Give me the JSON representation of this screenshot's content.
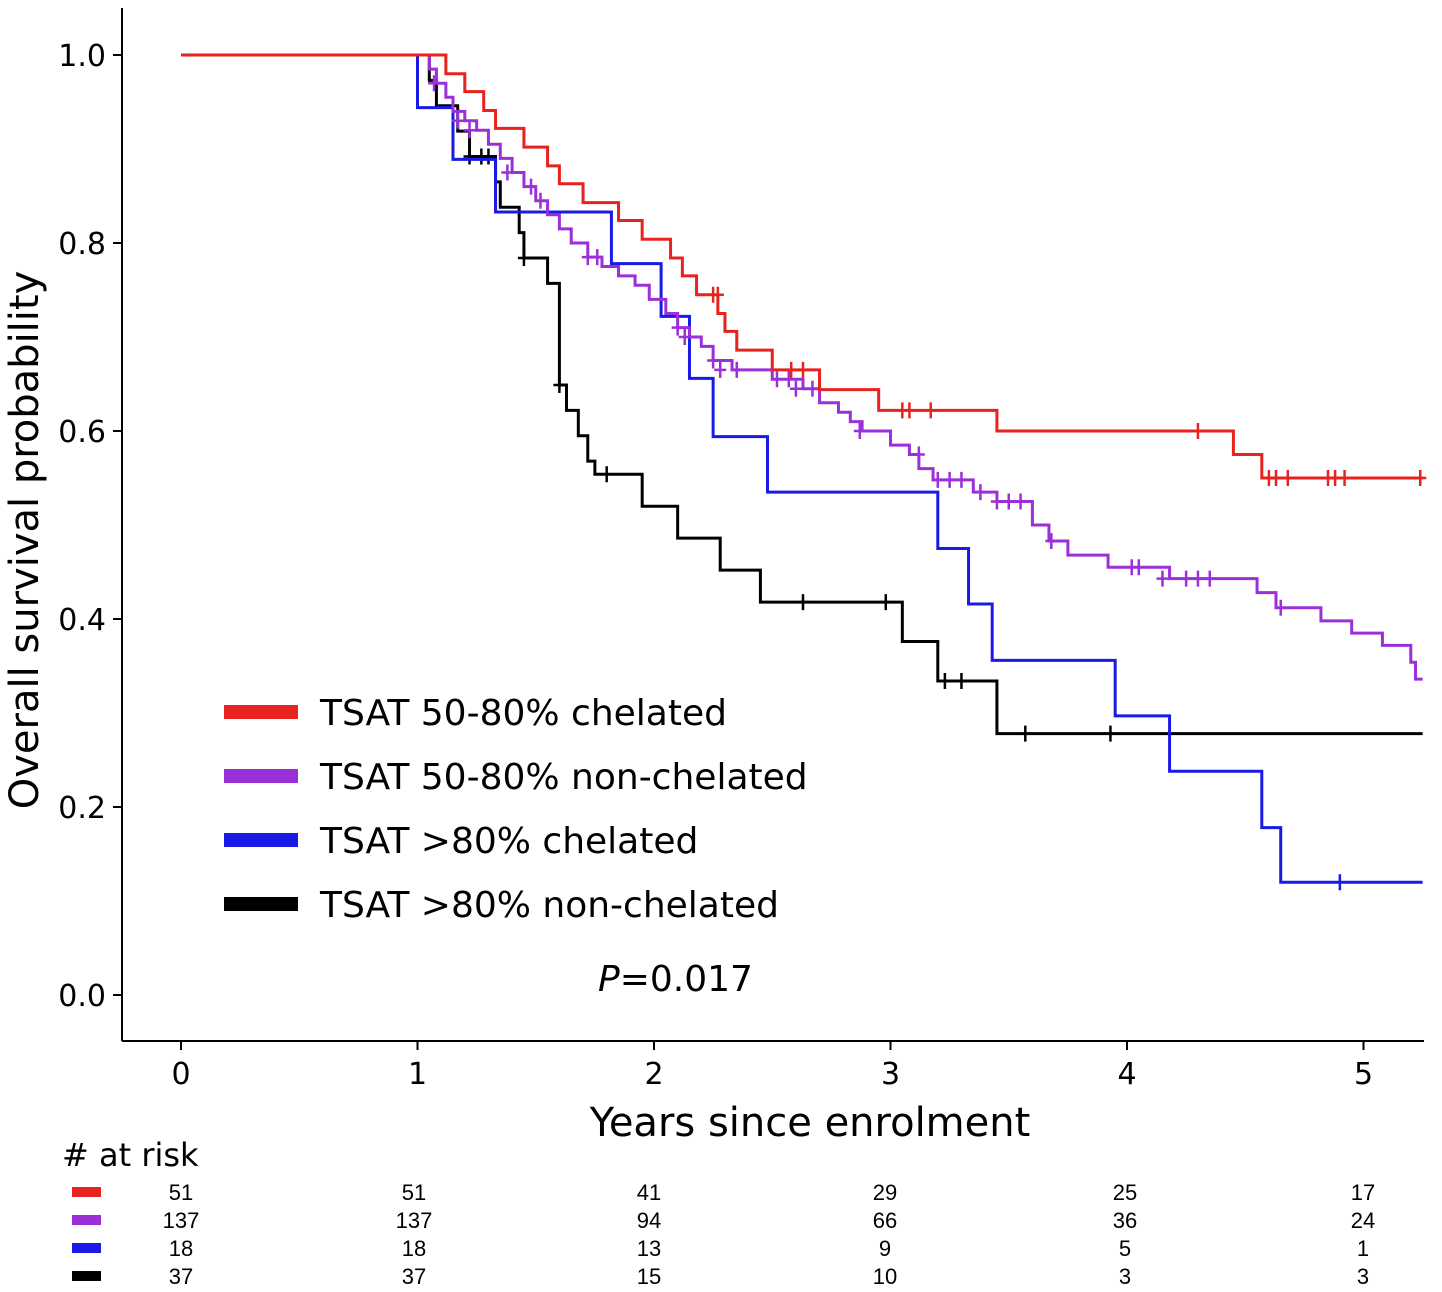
{
  "chart_data": {
    "type": "line",
    "subtype": "kaplan-meier-step",
    "xlabel": "Years since enrolment",
    "ylabel": "Overall survival probability",
    "xlim": [
      -0.25,
      5.25
    ],
    "ylim": [
      -0.05,
      1.05
    ],
    "x_ticks": [
      "0",
      "1",
      "2",
      "3",
      "4",
      "5"
    ],
    "y_ticks": [
      "0.0",
      "0.2",
      "0.4",
      "0.6",
      "0.8",
      "1.0"
    ],
    "grid": false,
    "legend_position": "bottom-left",
    "annotation": {
      "italic": "P",
      "rest": "=0.017"
    },
    "series": [
      {
        "name": "TSAT 50-80% chelated",
        "color": "#e8231f",
        "steps": [
          [
            0,
            1
          ],
          [
            1.12,
            0.98
          ],
          [
            1.2,
            0.961
          ],
          [
            1.28,
            0.941
          ],
          [
            1.33,
            0.922
          ],
          [
            1.45,
            0.902
          ],
          [
            1.55,
            0.882
          ],
          [
            1.6,
            0.863
          ],
          [
            1.7,
            0.843
          ],
          [
            1.85,
            0.824
          ],
          [
            1.95,
            0.804
          ],
          [
            2.07,
            0.784
          ],
          [
            2.12,
            0.765
          ],
          [
            2.18,
            0.745
          ],
          [
            2.27,
            0.725
          ],
          [
            2.3,
            0.706
          ],
          [
            2.35,
            0.686
          ],
          [
            2.5,
            0.665
          ],
          [
            2.7,
            0.644
          ],
          [
            2.95,
            0.622
          ],
          [
            3.45,
            0.6
          ],
          [
            4.45,
            0.575
          ],
          [
            4.57,
            0.55
          ],
          [
            5.25,
            0.55
          ]
        ],
        "censors": [
          [
            2.25,
            0.745
          ],
          [
            2.27,
            0.745
          ],
          [
            2.58,
            0.665
          ],
          [
            2.63,
            0.665
          ],
          [
            3.05,
            0.622
          ],
          [
            3.08,
            0.622
          ],
          [
            3.17,
            0.622
          ],
          [
            4.3,
            0.6
          ],
          [
            4.6,
            0.55
          ],
          [
            4.63,
            0.55
          ],
          [
            4.68,
            0.55
          ],
          [
            4.85,
            0.55
          ],
          [
            4.88,
            0.55
          ],
          [
            4.92,
            0.55
          ],
          [
            5.24,
            0.55
          ]
        ]
      },
      {
        "name": "TSAT 50-80% non-chelated",
        "color": "#9b30d9",
        "steps": [
          [
            0,
            1
          ],
          [
            1.05,
            0.985
          ],
          [
            1.08,
            0.97
          ],
          [
            1.12,
            0.955
          ],
          [
            1.15,
            0.94
          ],
          [
            1.2,
            0.93
          ],
          [
            1.25,
            0.92
          ],
          [
            1.3,
            0.905
          ],
          [
            1.35,
            0.89
          ],
          [
            1.4,
            0.875
          ],
          [
            1.45,
            0.86
          ],
          [
            1.5,
            0.845
          ],
          [
            1.55,
            0.83
          ],
          [
            1.6,
            0.815
          ],
          [
            1.65,
            0.8
          ],
          [
            1.72,
            0.785
          ],
          [
            1.78,
            0.775
          ],
          [
            1.85,
            0.765
          ],
          [
            1.92,
            0.755
          ],
          [
            1.98,
            0.74
          ],
          [
            2.05,
            0.725
          ],
          [
            2.1,
            0.71
          ],
          [
            2.15,
            0.7
          ],
          [
            2.2,
            0.69
          ],
          [
            2.25,
            0.675
          ],
          [
            2.33,
            0.665
          ],
          [
            2.5,
            0.655
          ],
          [
            2.63,
            0.645
          ],
          [
            2.7,
            0.63
          ],
          [
            2.78,
            0.62
          ],
          [
            2.83,
            0.61
          ],
          [
            2.88,
            0.6
          ],
          [
            3.0,
            0.585
          ],
          [
            3.08,
            0.575
          ],
          [
            3.12,
            0.56
          ],
          [
            3.18,
            0.548
          ],
          [
            3.35,
            0.535
          ],
          [
            3.45,
            0.525
          ],
          [
            3.6,
            0.5
          ],
          [
            3.67,
            0.483
          ],
          [
            3.75,
            0.468
          ],
          [
            3.92,
            0.455
          ],
          [
            4.18,
            0.443
          ],
          [
            4.55,
            0.428
          ],
          [
            4.63,
            0.412
          ],
          [
            4.82,
            0.398
          ],
          [
            4.95,
            0.385
          ],
          [
            5.08,
            0.372
          ],
          [
            5.2,
            0.354
          ],
          [
            5.22,
            0.336
          ],
          [
            5.25,
            0.336
          ]
        ],
        "censors": [
          [
            1.07,
            0.97
          ],
          [
            1.17,
            0.93
          ],
          [
            1.22,
            0.92
          ],
          [
            1.38,
            0.875
          ],
          [
            1.48,
            0.86
          ],
          [
            1.52,
            0.845
          ],
          [
            1.72,
            0.785
          ],
          [
            1.76,
            0.785
          ],
          [
            2.1,
            0.71
          ],
          [
            2.13,
            0.7
          ],
          [
            2.25,
            0.675
          ],
          [
            2.28,
            0.665
          ],
          [
            2.35,
            0.665
          ],
          [
            2.52,
            0.655
          ],
          [
            2.57,
            0.655
          ],
          [
            2.6,
            0.645
          ],
          [
            2.67,
            0.645
          ],
          [
            2.87,
            0.6
          ],
          [
            3.12,
            0.575
          ],
          [
            3.2,
            0.548
          ],
          [
            3.25,
            0.548
          ],
          [
            3.3,
            0.548
          ],
          [
            3.38,
            0.535
          ],
          [
            3.45,
            0.525
          ],
          [
            3.5,
            0.525
          ],
          [
            3.55,
            0.525
          ],
          [
            3.68,
            0.483
          ],
          [
            4.02,
            0.455
          ],
          [
            4.05,
            0.455
          ],
          [
            4.15,
            0.443
          ],
          [
            4.25,
            0.443
          ],
          [
            4.3,
            0.443
          ],
          [
            4.35,
            0.443
          ],
          [
            4.65,
            0.412
          ]
        ]
      },
      {
        "name": "TSAT >80% chelated",
        "color": "#1a1ae6",
        "steps": [
          [
            0,
            1
          ],
          [
            1.0,
            0.944
          ],
          [
            1.15,
            0.889
          ],
          [
            1.33,
            0.833
          ],
          [
            1.82,
            0.778
          ],
          [
            2.03,
            0.722
          ],
          [
            2.15,
            0.656
          ],
          [
            2.25,
            0.594
          ],
          [
            2.48,
            0.535
          ],
          [
            3.2,
            0.475
          ],
          [
            3.33,
            0.416
          ],
          [
            3.43,
            0.356
          ],
          [
            3.95,
            0.297
          ],
          [
            4.18,
            0.238
          ],
          [
            4.57,
            0.178
          ],
          [
            4.65,
            0.12
          ],
          [
            5.25,
            0.12
          ]
        ],
        "censors": [
          [
            4.9,
            0.12
          ]
        ]
      },
      {
        "name": "TSAT >80% non-chelated",
        "color": "#000000",
        "steps": [
          [
            0,
            1
          ],
          [
            1.05,
            0.973
          ],
          [
            1.08,
            0.946
          ],
          [
            1.17,
            0.919
          ],
          [
            1.22,
            0.892
          ],
          [
            1.33,
            0.865
          ],
          [
            1.35,
            0.838
          ],
          [
            1.43,
            0.811
          ],
          [
            1.45,
            0.784
          ],
          [
            1.55,
            0.757
          ],
          [
            1.6,
            0.73
          ],
          [
            1.6,
            0.703
          ],
          [
            1.6,
            0.676
          ],
          [
            1.6,
            0.649
          ],
          [
            1.63,
            0.622
          ],
          [
            1.68,
            0.595
          ],
          [
            1.72,
            0.568
          ],
          [
            1.75,
            0.554
          ],
          [
            1.95,
            0.52
          ],
          [
            2.1,
            0.486
          ],
          [
            2.28,
            0.452
          ],
          [
            2.45,
            0.418
          ],
          [
            3.05,
            0.376
          ],
          [
            3.2,
            0.334
          ],
          [
            3.45,
            0.278
          ],
          [
            5.25,
            0.278
          ]
        ],
        "censors": [
          [
            1.22,
            0.892
          ],
          [
            1.27,
            0.892
          ],
          [
            1.3,
            0.892
          ],
          [
            1.45,
            0.784
          ],
          [
            1.6,
            0.649
          ],
          [
            1.8,
            0.554
          ],
          [
            2.63,
            0.418
          ],
          [
            2.98,
            0.418
          ],
          [
            3.23,
            0.334
          ],
          [
            3.3,
            0.334
          ],
          [
            3.57,
            0.278
          ],
          [
            3.93,
            0.278
          ]
        ]
      }
    ],
    "risk_table": {
      "title": "# at risk",
      "times": [
        0,
        1,
        2,
        3,
        4,
        5
      ],
      "rows": [
        {
          "color": "#e8231f",
          "counts": [
            "51",
            "51",
            "41",
            "29",
            "25",
            "17"
          ]
        },
        {
          "color": "#9b30d9",
          "counts": [
            "137",
            "137",
            "94",
            "66",
            "36",
            "24"
          ]
        },
        {
          "color": "#1a1ae6",
          "counts": [
            "18",
            "18",
            "13",
            "9",
            "5",
            "1"
          ]
        },
        {
          "color": "#000000",
          "counts": [
            "37",
            "37",
            "15",
            "10",
            "3",
            "3"
          ]
        }
      ]
    }
  }
}
